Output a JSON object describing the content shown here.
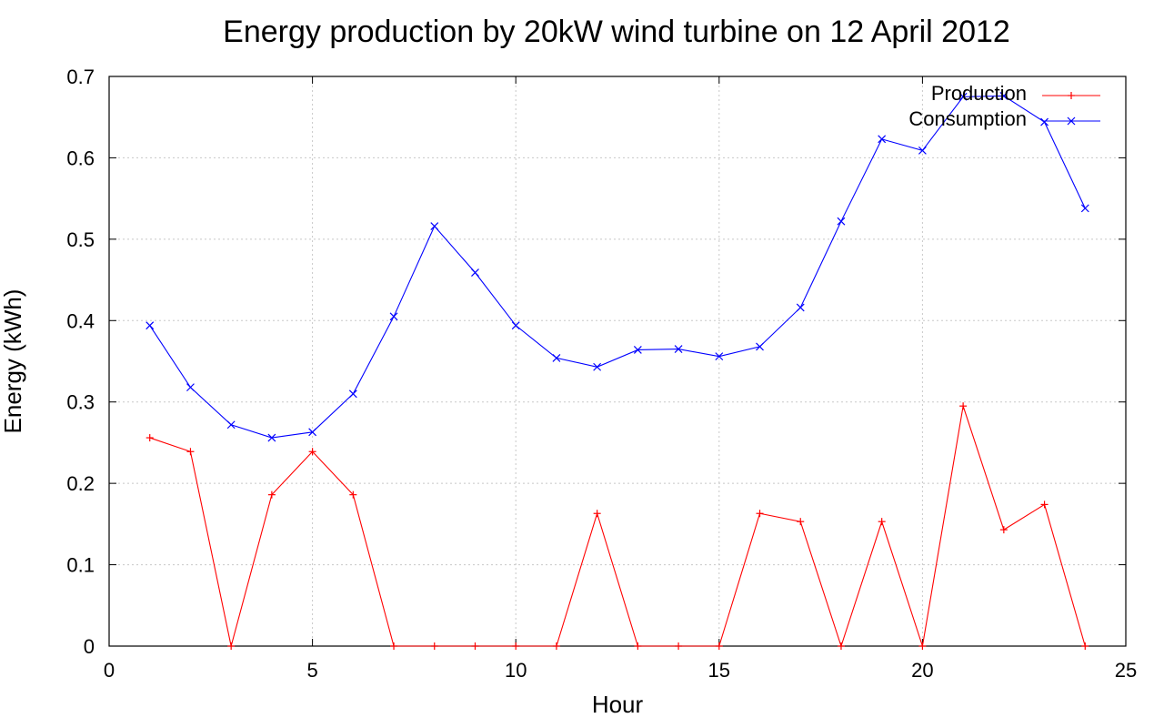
{
  "chart_data": {
    "type": "line",
    "title": "Energy production by 20kW wind turbine on 12 April 2012",
    "xlabel": "Hour",
    "ylabel": "Energy (kWh)",
    "xlim": [
      0,
      25
    ],
    "ylim": [
      0,
      0.7
    ],
    "xticks": [
      0,
      5,
      10,
      15,
      20,
      25
    ],
    "xtick_labels": [
      "0",
      "5",
      "10",
      "15",
      "20",
      "25"
    ],
    "yticks": [
      0,
      0.1,
      0.2,
      0.3,
      0.4,
      0.5,
      0.6,
      0.7
    ],
    "ytick_labels": [
      "0",
      "0.1",
      "0.2",
      "0.3",
      "0.4",
      "0.5",
      "0.6",
      "0.7"
    ],
    "grid": true,
    "legend_position": "top-right",
    "x": [
      1,
      2,
      3,
      4,
      5,
      6,
      7,
      8,
      9,
      10,
      11,
      12,
      13,
      14,
      15,
      16,
      17,
      18,
      19,
      20,
      21,
      22,
      23,
      24
    ],
    "series": [
      {
        "name": "Production",
        "color": "#ff0000",
        "marker": "plus",
        "values": [
          0.256,
          0.239,
          0.0,
          0.186,
          0.239,
          0.186,
          0.0,
          0.0,
          0.0,
          0.0,
          0.0,
          0.163,
          0.0,
          0.0,
          0.0,
          0.163,
          0.153,
          0.0,
          0.153,
          0.0,
          0.295,
          0.143,
          0.174,
          0.0
        ]
      },
      {
        "name": "Consumption",
        "color": "#0000ff",
        "marker": "cross",
        "values": [
          0.394,
          0.318,
          0.272,
          0.256,
          0.263,
          0.31,
          0.405,
          0.516,
          0.459,
          0.394,
          0.354,
          0.343,
          0.364,
          0.365,
          0.356,
          0.368,
          0.416,
          0.522,
          0.623,
          0.609,
          0.675,
          0.676,
          0.644,
          0.538
        ]
      }
    ]
  }
}
